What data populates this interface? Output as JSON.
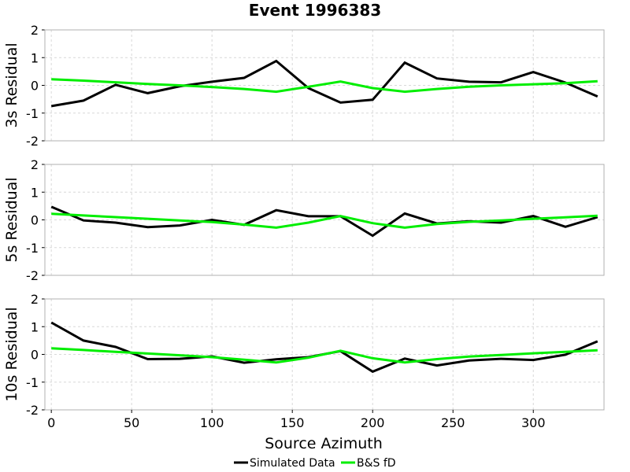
{
  "chart_data": {
    "type": "line",
    "title": "Event 1996383",
    "xlabel": "Source Azimuth",
    "xlim": [
      -4,
      344
    ],
    "xticks": [
      0,
      50,
      100,
      150,
      200,
      250,
      300
    ],
    "ylim": [
      -2,
      2
    ],
    "yticks": [
      -2,
      -1,
      0,
      1,
      2
    ],
    "grid": true,
    "legend_placement": "bottom-center",
    "x": [
      0,
      20,
      40,
      60,
      80,
      100,
      120,
      140,
      160,
      180,
      200,
      220,
      240,
      260,
      280,
      300,
      320,
      340
    ],
    "panels": [
      {
        "ylabel": "3s Residual",
        "series": [
          {
            "name": "Simulated Data",
            "color": "#000000",
            "values": [
              -0.75,
              -0.55,
              0.02,
              -0.28,
              -0.03,
              0.13,
              0.27,
              0.88,
              -0.1,
              -0.62,
              -0.52,
              0.82,
              0.25,
              0.13,
              0.11,
              0.48,
              0.1,
              -0.4
            ]
          },
          {
            "name": "B&S fD",
            "color": "#00ee00",
            "values": [
              0.22,
              0.17,
              0.11,
              0.05,
              0.0,
              -0.06,
              -0.13,
              -0.23,
              -0.05,
              0.14,
              -0.1,
              -0.23,
              -0.13,
              -0.05,
              0.0,
              0.04,
              0.08,
              0.15
            ]
          }
        ]
      },
      {
        "ylabel": "5s Residual",
        "series": [
          {
            "name": "Simulated Data",
            "color": "#000000",
            "values": [
              0.47,
              -0.02,
              -0.1,
              -0.26,
              -0.2,
              0.0,
              -0.18,
              0.35,
              0.13,
              0.13,
              -0.57,
              0.23,
              -0.13,
              -0.05,
              -0.1,
              0.14,
              -0.25,
              0.1
            ]
          },
          {
            "name": "B&S fD",
            "color": "#00ee00",
            "values": [
              0.22,
              0.16,
              0.1,
              0.04,
              -0.02,
              -0.08,
              -0.17,
              -0.28,
              -0.1,
              0.14,
              -0.12,
              -0.28,
              -0.15,
              -0.07,
              -0.02,
              0.04,
              0.09,
              0.15
            ]
          }
        ]
      },
      {
        "ylabel": "10s Residual",
        "series": [
          {
            "name": "Simulated Data",
            "color": "#000000",
            "values": [
              1.15,
              0.5,
              0.27,
              -0.17,
              -0.16,
              -0.07,
              -0.3,
              -0.18,
              -0.1,
              0.12,
              -0.62,
              -0.15,
              -0.4,
              -0.22,
              -0.16,
              -0.2,
              -0.01,
              0.47
            ]
          },
          {
            "name": "B&S fD",
            "color": "#00ee00",
            "values": [
              0.22,
              0.16,
              0.09,
              0.03,
              -0.03,
              -0.1,
              -0.19,
              -0.29,
              -0.12,
              0.13,
              -0.14,
              -0.29,
              -0.17,
              -0.08,
              -0.02,
              0.04,
              0.09,
              0.15
            ]
          }
        ]
      }
    ],
    "legend": [
      {
        "label": "Simulated Data",
        "color": "#000000"
      },
      {
        "label": "B&S fD",
        "color": "#00ee00"
      }
    ]
  }
}
